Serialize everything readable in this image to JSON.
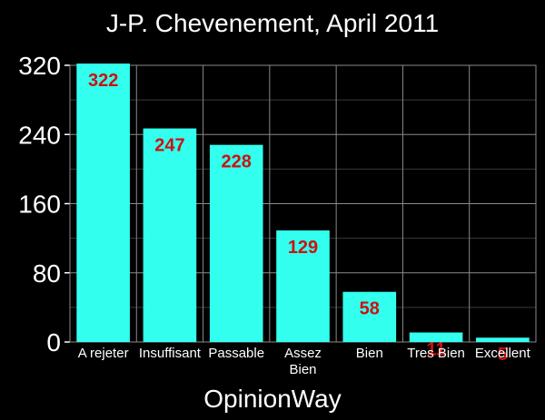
{
  "chart_data": {
    "type": "bar",
    "title": "J-P. Chevenement, April 2011",
    "xlabel": "OpinionWay",
    "ylabel": "",
    "categories": [
      "A rejeter",
      "Insuffisant",
      "Passable",
      "Assez Bien",
      "Bien",
      "Tres Bien",
      "Excellent"
    ],
    "values": [
      322,
      247,
      228,
      129,
      58,
      11,
      5
    ],
    "ylim": [
      0,
      320
    ],
    "yticks": [
      0,
      80,
      160,
      240,
      320
    ],
    "grid": true,
    "colors": {
      "background": "#000000",
      "bar": "#33ffee",
      "label": "#cc1111",
      "grid": "#8a8a8a",
      "minor_grid": "#3a3a3a",
      "text": "#ffffff"
    }
  }
}
